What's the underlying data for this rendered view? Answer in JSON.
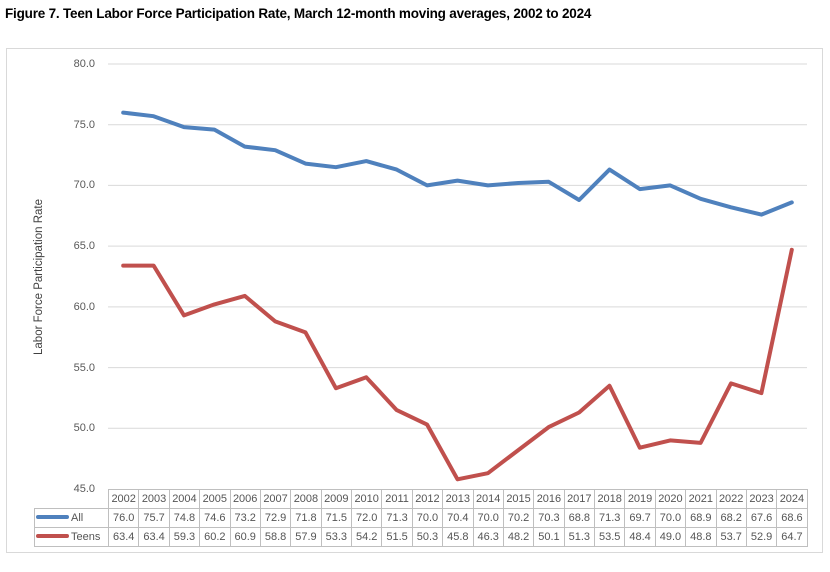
{
  "title": "Figure 7. Teen Labor Force Participation Rate, March 12-month moving averages, 2002 to 2024",
  "chart_data": {
    "type": "line",
    "title": "Figure 7. Teen Labor Force Participation Rate, March 12-month moving averages, 2002 to 2024",
    "xlabel": "",
    "ylabel": "Labor Force Participation Rate",
    "ylim": [
      45.0,
      80.0
    ],
    "yticks": [
      "80.0",
      "75.0",
      "70.0",
      "65.0",
      "60.0",
      "55.0",
      "50.0",
      "45.0"
    ],
    "grid": true,
    "legend_position": "data-table-left",
    "categories": [
      "2002",
      "2003",
      "2004",
      "2005",
      "2006",
      "2007",
      "2008",
      "2009",
      "2010",
      "2011",
      "2012",
      "2013",
      "2014",
      "2015",
      "2016",
      "2017",
      "2018",
      "2019",
      "2020",
      "2021",
      "2022",
      "2023",
      "2024"
    ],
    "series": [
      {
        "name": "All",
        "color": "#4F81BD",
        "values": [
          76.0,
          75.7,
          74.8,
          74.6,
          73.2,
          72.9,
          71.8,
          71.5,
          72.0,
          71.3,
          70.0,
          70.4,
          70.0,
          70.2,
          70.3,
          68.8,
          71.3,
          69.7,
          70.0,
          68.9,
          68.2,
          67.6,
          68.6
        ]
      },
      {
        "name": "Teens",
        "color": "#C0504D",
        "values": [
          63.4,
          63.4,
          59.3,
          60.2,
          60.9,
          58.8,
          57.9,
          53.3,
          54.2,
          51.5,
          50.3,
          45.8,
          46.3,
          48.2,
          50.1,
          51.3,
          53.5,
          48.4,
          49.0,
          48.8,
          53.7,
          52.9,
          64.7
        ]
      }
    ]
  },
  "colors": {
    "series_all": "#4F81BD",
    "series_teens": "#C0504D",
    "gridline": "#d9d9d9",
    "frame_border": "#d9d9d9",
    "table_border": "#bfbfbf",
    "axis_text": "#595959",
    "title_text": "#000000"
  }
}
